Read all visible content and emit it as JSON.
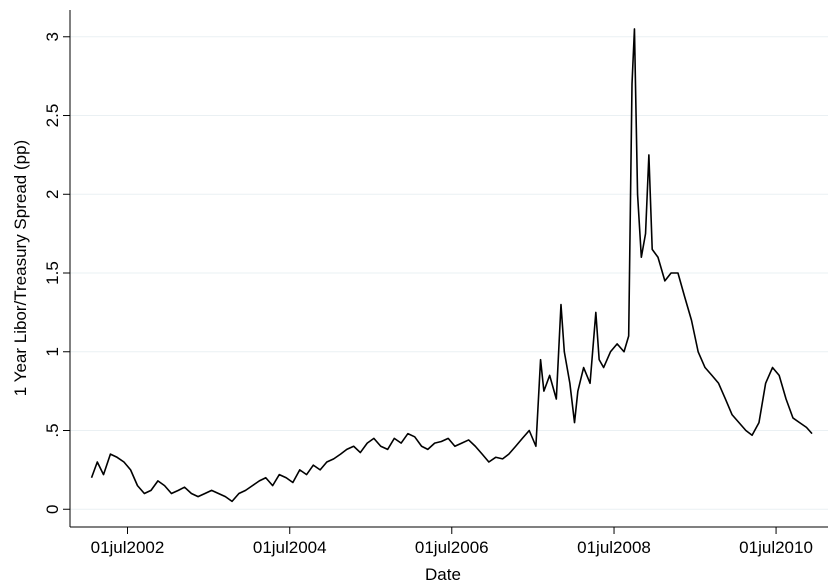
{
  "chart_data": {
    "type": "line",
    "x_label": "Date",
    "y_label": "1 Year Libor/Treasury Spread (pp)",
    "x": [
      "2002-01-20",
      "2002-02-15",
      "2002-03-15",
      "2002-04-15",
      "2002-05-15",
      "2002-06-15",
      "2002-07-15",
      "2002-08-15",
      "2002-09-15",
      "2002-10-15",
      "2002-11-15",
      "2002-12-15",
      "2003-01-15",
      "2003-02-15",
      "2003-03-15",
      "2003-04-15",
      "2003-05-15",
      "2003-06-15",
      "2003-07-15",
      "2003-08-15",
      "2003-09-15",
      "2003-10-15",
      "2003-11-15",
      "2003-12-15",
      "2004-01-15",
      "2004-02-15",
      "2004-03-15",
      "2004-04-15",
      "2004-05-15",
      "2004-06-15",
      "2004-07-15",
      "2004-08-15",
      "2004-09-15",
      "2004-10-15",
      "2004-11-15",
      "2004-12-15",
      "2005-01-15",
      "2005-02-15",
      "2005-03-15",
      "2005-04-15",
      "2005-05-15",
      "2005-06-15",
      "2005-07-15",
      "2005-08-15",
      "2005-09-15",
      "2005-10-15",
      "2005-11-15",
      "2005-12-15",
      "2006-01-15",
      "2006-02-15",
      "2006-03-15",
      "2006-04-15",
      "2006-05-15",
      "2006-06-15",
      "2006-07-15",
      "2006-08-15",
      "2006-09-15",
      "2006-10-15",
      "2006-11-15",
      "2006-12-15",
      "2007-01-15",
      "2007-02-15",
      "2007-03-15",
      "2007-04-15",
      "2007-05-15",
      "2007-06-15",
      "2007-07-15",
      "2007-08-05",
      "2007-08-20",
      "2007-09-15",
      "2007-10-15",
      "2007-11-05",
      "2007-11-20",
      "2007-12-15",
      "2008-01-05",
      "2008-01-20",
      "2008-02-15",
      "2008-03-15",
      "2008-04-10",
      "2008-04-25",
      "2008-05-15",
      "2008-06-15",
      "2008-07-15",
      "2008-08-15",
      "2008-09-05",
      "2008-09-20",
      "2008-10-01",
      "2008-10-15",
      "2008-11-01",
      "2008-11-20",
      "2008-12-05",
      "2008-12-20",
      "2009-01-15",
      "2009-02-15",
      "2009-03-15",
      "2009-04-15",
      "2009-05-15",
      "2009-06-15",
      "2009-07-15",
      "2009-08-15",
      "2009-09-15",
      "2009-10-15",
      "2009-11-15",
      "2009-12-15",
      "2010-01-15",
      "2010-02-15",
      "2010-03-15",
      "2010-04-15",
      "2010-05-15",
      "2010-06-15",
      "2010-07-15",
      "2010-08-15",
      "2010-09-15",
      "2010-10-15",
      "2010-11-15",
      "2010-12-10"
    ],
    "series": [
      {
        "name": "spread",
        "color": "#000000",
        "values": [
          0.2,
          0.3,
          0.22,
          0.35,
          0.33,
          0.3,
          0.25,
          0.15,
          0.1,
          0.12,
          0.18,
          0.15,
          0.1,
          0.12,
          0.14,
          0.1,
          0.08,
          0.1,
          0.12,
          0.1,
          0.08,
          0.05,
          0.1,
          0.12,
          0.15,
          0.18,
          0.2,
          0.15,
          0.22,
          0.2,
          0.17,
          0.25,
          0.22,
          0.28,
          0.25,
          0.3,
          0.32,
          0.35,
          0.38,
          0.4,
          0.36,
          0.42,
          0.45,
          0.4,
          0.38,
          0.45,
          0.42,
          0.48,
          0.46,
          0.4,
          0.38,
          0.42,
          0.43,
          0.45,
          0.4,
          0.42,
          0.44,
          0.4,
          0.35,
          0.3,
          0.33,
          0.32,
          0.35,
          0.4,
          0.45,
          0.5,
          0.4,
          0.95,
          0.75,
          0.85,
          0.7,
          1.3,
          1.0,
          0.8,
          0.55,
          0.75,
          0.9,
          0.8,
          1.25,
          0.95,
          0.9,
          1.0,
          1.05,
          1.0,
          1.1,
          2.7,
          3.05,
          2.0,
          1.6,
          1.75,
          2.25,
          1.65,
          1.6,
          1.45,
          1.5,
          1.5,
          1.35,
          1.2,
          1.0,
          0.9,
          0.85,
          0.8,
          0.7,
          0.6,
          0.55,
          0.5,
          0.47,
          0.55,
          0.8,
          0.9,
          0.85,
          0.7,
          0.58,
          0.55,
          0.52,
          0.48
        ]
      }
    ],
    "xlim": [
      "2001-10-15",
      "2011-02-20"
    ],
    "xticks": [
      {
        "value": "2002-07-01",
        "label": "01jul2002"
      },
      {
        "value": "2004-07-01",
        "label": "01jul2004"
      },
      {
        "value": "2006-07-01",
        "label": "01jul2006"
      },
      {
        "value": "2008-07-01",
        "label": "01jul2008"
      },
      {
        "value": "2010-07-01",
        "label": "01jul2010"
      }
    ],
    "ylim": [
      -0.1,
      3.17
    ],
    "yticks": [
      0,
      {
        "value": 0.5,
        "label": ".5"
      },
      1,
      1.5,
      2,
      2.5,
      3
    ],
    "grid": true
  }
}
